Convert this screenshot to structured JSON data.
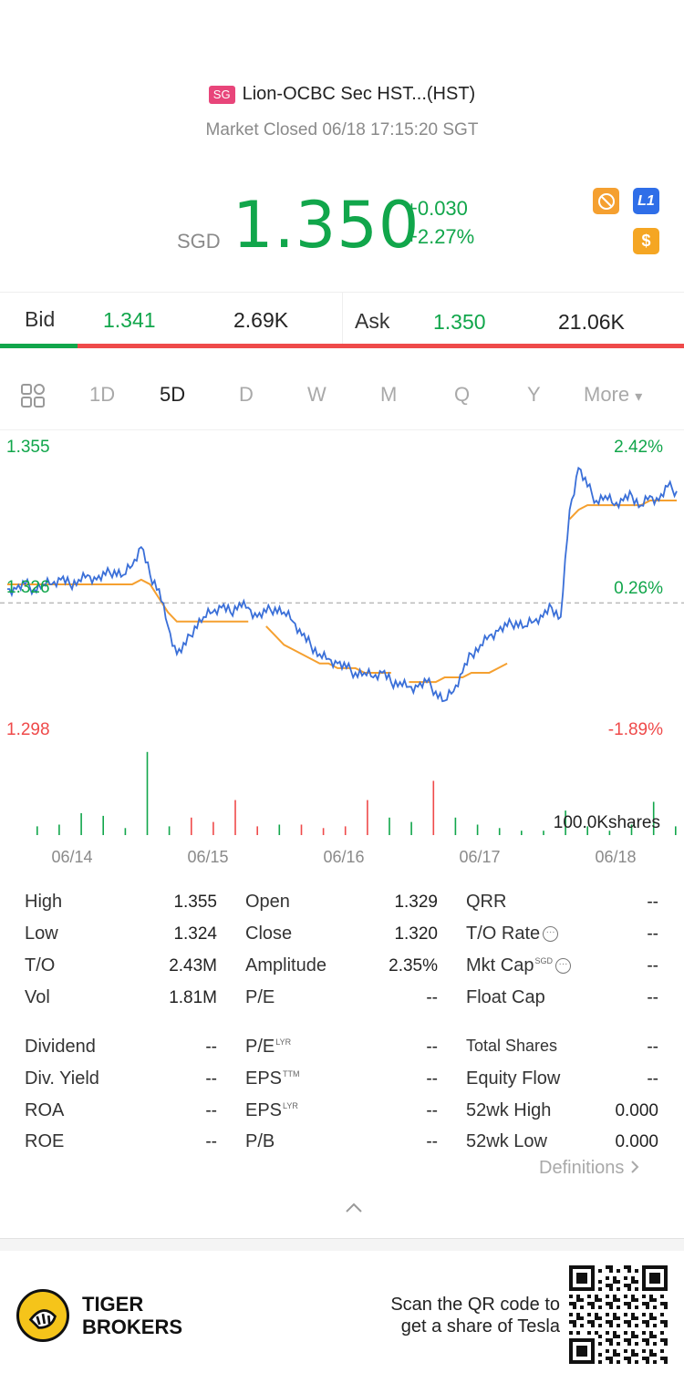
{
  "header": {
    "market_badge": "SG",
    "title": "Lion-OCBC Sec HST...(HST)",
    "status": "Market Closed 06/18 17:15:20 SGT"
  },
  "quote": {
    "currency": "SGD",
    "price": "1.350",
    "change": "+0.030",
    "change_pct": "+2.27%",
    "icons": [
      "no-short-icon",
      "level1-icon",
      "dollar-icon"
    ],
    "level_badge": "L1",
    "dollar_badge": "$"
  },
  "bid_ask": {
    "bid_label": "Bid",
    "bid_price": "1.341",
    "bid_size": "2.69K",
    "ask_label": "Ask",
    "ask_price": "1.350",
    "ask_size": "21.06K",
    "bid_share": 0.113
  },
  "tabs": {
    "grid_icon": "grid-icon",
    "items": [
      "1D",
      "5D",
      "D",
      "W",
      "M",
      "Q",
      "Y",
      "More"
    ],
    "active": "5D",
    "more_arrow": "▾"
  },
  "chart_data": {
    "type": "line",
    "y_axis_left": {
      "top": "1.355",
      "mid": "1.326",
      "bottom": "1.298"
    },
    "y_axis_right": {
      "top": "2.42%",
      "mid": "0.26%",
      "bottom": "-1.89%"
    },
    "ylim": [
      1.298,
      1.355
    ],
    "prev_close_ref": 1.323,
    "x_ticks": [
      "06/14",
      "06/15",
      "06/16",
      "06/17",
      "06/18"
    ],
    "volume_label": "100.0Kshares",
    "colors": {
      "price": "#3a6fd8",
      "avg": "#f5a030",
      "up": "#11a64b",
      "down": "#ef4a4a",
      "ref": "#bbbbbb"
    },
    "price": [
      1.326,
      1.326,
      1.327,
      1.326,
      1.327,
      1.327,
      1.328,
      1.327,
      1.328,
      1.329,
      1.328,
      1.329,
      1.33,
      1.329,
      1.331,
      1.335,
      1.329,
      1.326,
      1.318,
      1.312,
      1.314,
      1.318,
      1.32,
      1.321,
      1.322,
      1.321,
      1.323,
      1.322,
      1.32,
      1.321,
      1.322,
      1.321,
      1.319,
      1.316,
      1.314,
      1.312,
      1.311,
      1.31,
      1.309,
      1.308,
      1.308,
      1.307,
      1.308,
      1.306,
      1.306,
      1.305,
      1.305,
      1.306,
      1.304,
      1.302,
      1.304,
      1.308,
      1.312,
      1.314,
      1.316,
      1.317,
      1.318,
      1.319,
      1.318,
      1.319,
      1.32,
      1.322,
      1.32,
      1.343,
      1.352,
      1.348,
      1.345,
      1.346,
      1.344,
      1.345,
      1.346,
      1.344,
      1.346,
      1.345,
      1.348,
      1.347
    ],
    "avg": [
      1.327,
      1.327,
      1.327,
      1.327,
      1.327,
      1.327,
      1.327,
      1.327,
      1.327,
      1.327,
      1.327,
      1.327,
      1.327,
      1.327,
      1.327,
      1.328,
      1.327,
      1.324,
      1.321,
      1.319,
      1.319,
      1.319,
      1.319,
      1.319,
      1.319,
      1.319,
      1.319,
      1.319,
      null,
      1.318,
      1.316,
      1.314,
      1.313,
      1.312,
      1.311,
      1.31,
      1.31,
      1.309,
      1.309,
      1.309,
      1.308,
      1.308,
      1.308,
      1.308,
      null,
      1.306,
      1.306,
      1.306,
      1.306,
      1.307,
      1.307,
      1.307,
      1.308,
      1.308,
      1.308,
      1.309,
      1.31,
      null,
      null,
      null,
      null,
      null,
      null,
      1.341,
      1.343,
      1.344,
      1.344,
      1.344,
      1.344,
      1.344,
      1.344,
      1.344,
      1.345,
      1.345,
      1.345,
      1.345
    ],
    "volume": [
      {
        "v": 0.1,
        "c": "up"
      },
      {
        "v": 0.12,
        "c": "up"
      },
      {
        "v": 0.25,
        "c": "up"
      },
      {
        "v": 0.22,
        "c": "up"
      },
      {
        "v": 0.08,
        "c": "up"
      },
      {
        "v": 0.95,
        "c": "up"
      },
      {
        "v": 0.1,
        "c": "up"
      },
      {
        "v": 0.2,
        "c": "down"
      },
      {
        "v": 0.15,
        "c": "down"
      },
      {
        "v": 0.4,
        "c": "down"
      },
      {
        "v": 0.1,
        "c": "down"
      },
      {
        "v": 0.12,
        "c": "up"
      },
      {
        "v": 0.12,
        "c": "down"
      },
      {
        "v": 0.08,
        "c": "down"
      },
      {
        "v": 0.1,
        "c": "down"
      },
      {
        "v": 0.4,
        "c": "down"
      },
      {
        "v": 0.2,
        "c": "up"
      },
      {
        "v": 0.15,
        "c": "up"
      },
      {
        "v": 0.62,
        "c": "down"
      },
      {
        "v": 0.2,
        "c": "up"
      },
      {
        "v": 0.12,
        "c": "up"
      },
      {
        "v": 0.08,
        "c": "up"
      },
      {
        "v": 0.05,
        "c": "up"
      },
      {
        "v": 0.05,
        "c": "up"
      },
      {
        "v": 0.28,
        "c": "up"
      },
      {
        "v": 0.1,
        "c": "up"
      },
      {
        "v": 0.05,
        "c": "up"
      },
      {
        "v": 0.12,
        "c": "up"
      },
      {
        "v": 0.38,
        "c": "up"
      },
      {
        "v": 0.1,
        "c": "up"
      }
    ]
  },
  "stats": {
    "col1": [
      {
        "label": "High",
        "value": "1.355"
      },
      {
        "label": "Low",
        "value": "1.324"
      },
      {
        "label": "T/O",
        "value": "2.43M"
      },
      {
        "label": "Vol",
        "value": "1.81M"
      },
      {
        "label": "Dividend",
        "value": "--"
      },
      {
        "label": "Div. Yield",
        "value": "--"
      },
      {
        "label": "ROA",
        "value": "--"
      },
      {
        "label": "ROE",
        "value": "--"
      }
    ],
    "col2": [
      {
        "label": "Open",
        "value": "1.329",
        "sup": ""
      },
      {
        "label": "Close",
        "value": "1.320",
        "sup": ""
      },
      {
        "label": "Amplitude",
        "value": "2.35%",
        "sup": ""
      },
      {
        "label": "P/E",
        "value": "--",
        "sup": ""
      },
      {
        "label": "P/E",
        "value": "--",
        "sup": "LYR"
      },
      {
        "label": "EPS",
        "value": "--",
        "sup": "TTM"
      },
      {
        "label": "EPS",
        "value": "--",
        "sup": "LYR"
      },
      {
        "label": "P/B",
        "value": "--",
        "sup": ""
      }
    ],
    "col3": [
      {
        "label": "QRR",
        "value": "--",
        "sup": ""
      },
      {
        "label": "T/O Rate",
        "value": "--",
        "sup": ""
      },
      {
        "label": "Mkt Cap",
        "value": "--",
        "sup": "SGD"
      },
      {
        "label": "Float Cap",
        "value": "--",
        "sup": ""
      },
      {
        "label": "Total Shares",
        "value": "--",
        "sup": ""
      },
      {
        "label": "Equity Flow",
        "value": "--",
        "sup": ""
      },
      {
        "label": "52wk High",
        "value": "0.000",
        "sup": ""
      },
      {
        "label": "52wk Low",
        "value": "0.000",
        "sup": ""
      }
    ],
    "definitions": "Definitions",
    "info_glyph": "···"
  },
  "footer": {
    "brand_line1": "TIGER",
    "brand_line2": "BROKERS",
    "promo_line1": "Scan the QR code to",
    "promo_line2": "get a share of Tesla"
  }
}
